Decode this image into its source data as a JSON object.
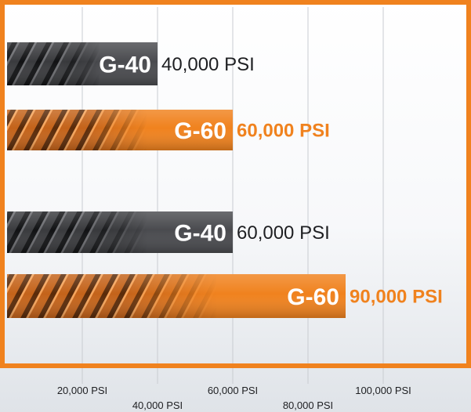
{
  "chart_data": {
    "type": "bar",
    "orientation": "horizontal",
    "title": "",
    "xlabel": "",
    "ylabel": "",
    "xlim": [
      0,
      100000
    ],
    "grid": true,
    "ticks": [
      {
        "value": 20000,
        "label": "20,000 PSI"
      },
      {
        "value": 40000,
        "label": "40,000 PSI"
      },
      {
        "value": 60000,
        "label": "60,000 PSI"
      },
      {
        "value": 80000,
        "label": "80,000 PSI"
      },
      {
        "value": 100000,
        "label": "100,000 PSI"
      }
    ],
    "bars": [
      {
        "grade": "G-40",
        "value": 40000,
        "value_label": "40,000 PSI",
        "color": "#2b2c2f"
      },
      {
        "grade": "G-60",
        "value": 60000,
        "value_label": "60,000 PSI",
        "color": "#f0821e"
      },
      {
        "grade": "G-40",
        "value": 60000,
        "value_label": "60,000 PSI",
        "color": "#2b2c2f"
      },
      {
        "grade": "G-60",
        "value": 90000,
        "value_label": "90,000 PSI",
        "color": "#f0821e"
      }
    ]
  },
  "colors": {
    "frame": "#f0821e",
    "gridline": "#c9ccd1",
    "dark_text": "#1e1f22",
    "accent_text": "#f0821e"
  }
}
